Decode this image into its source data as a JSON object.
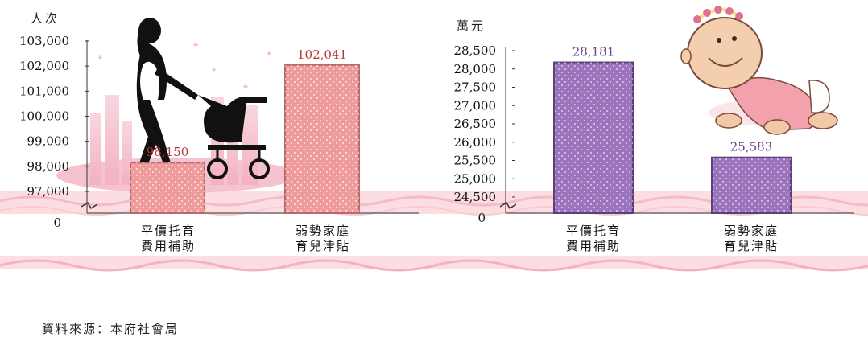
{
  "colors": {
    "left_bar": "#ef9b9b",
    "left_bar_edge": "#b86a6a",
    "left_label": "#b23a3a",
    "right_bar": "#9c74bd",
    "right_bar_edge": "#5d3f7a",
    "right_label": "#6a3f8e",
    "band": "#f7c7cf"
  },
  "chart_data": [
    {
      "type": "bar",
      "ylabel": "人次",
      "categories": [
        [
          "平價托育",
          "費用補助"
        ],
        [
          "弱勢家庭",
          "育兒津貼"
        ]
      ],
      "values": [
        98150,
        102041
      ],
      "value_labels": [
        "98,150",
        "102,041"
      ],
      "yticks": [
        "103,000",
        "102,000",
        "101,000",
        "100,000",
        "99,000",
        "98,000",
        "97,000"
      ],
      "ytick_values": [
        103000,
        102000,
        101000,
        100000,
        99000,
        98000,
        97000
      ],
      "zero_label": "0",
      "ylim": [
        97000,
        103000
      ],
      "axis_break": true,
      "grid": false
    },
    {
      "type": "bar",
      "ylabel": "萬元",
      "categories": [
        [
          "平價托育",
          "費用補助"
        ],
        [
          "弱勢家庭",
          "育兒津貼"
        ]
      ],
      "values": [
        28181,
        25583
      ],
      "value_labels": [
        "28,181",
        "25,583"
      ],
      "yticks": [
        "28,500",
        "28,000",
        "27,500",
        "27,000",
        "26,500",
        "26,000",
        "25,500",
        "25,000",
        "24,500"
      ],
      "ytick_values": [
        28500,
        28000,
        27500,
        27000,
        26500,
        26000,
        25500,
        25000,
        24500
      ],
      "zero_label": "0",
      "ylim": [
        24500,
        28500
      ],
      "axis_break": true,
      "grid": false
    }
  ],
  "source": "資料來源：本府社會局",
  "icons": [
    "mother-stroller-silhouette-icon",
    "crawling-baby-icon"
  ]
}
